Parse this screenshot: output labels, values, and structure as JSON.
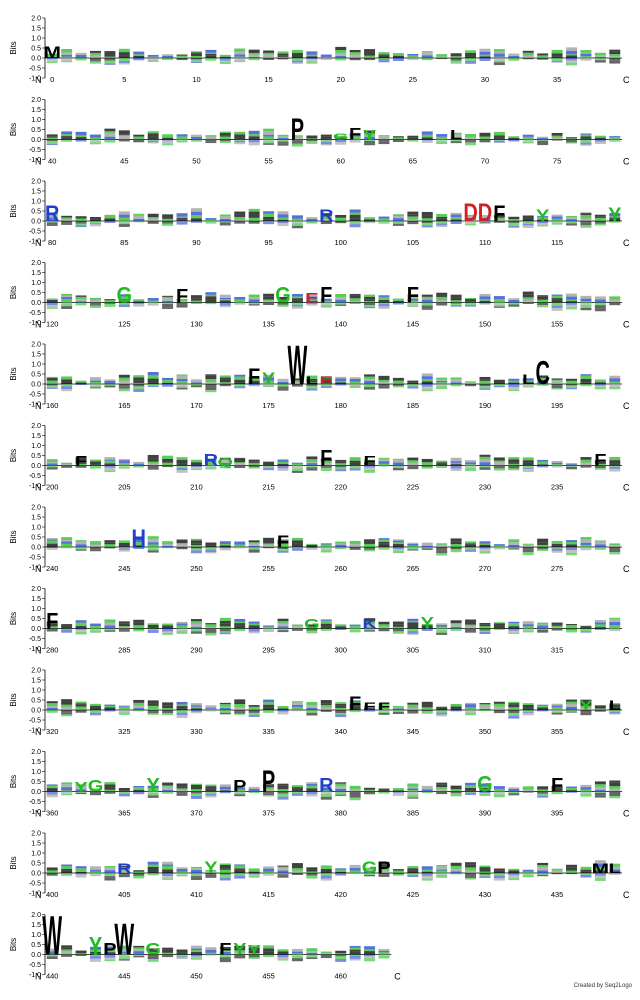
{
  "chart_data": {
    "type": "sequence-logo",
    "ylabel": "Bits",
    "y_ticks": [
      "2.0",
      "1.5",
      "1.0",
      "0.5",
      "0.0",
      "-0.5",
      "-1.0"
    ],
    "ylim": [
      -1.0,
      2.0
    ],
    "n_label": "N",
    "c_label": "C",
    "colors": {
      "hydrophobic": "#000000",
      "polar": "#22bb22",
      "basic": "#1f3fcc",
      "acidic": "#d42020",
      "other": "#cc22cc",
      "background_stack": "#9a9a9a"
    },
    "rows": [
      {
        "start": 0,
        "end": 39,
        "ticks": [
          0,
          5,
          10,
          15,
          20,
          25,
          30,
          35
        ],
        "letters": [
          {
            "pos": 0,
            "char": "M",
            "bits": 0.6
          }
        ]
      },
      {
        "start": 40,
        "end": 79,
        "ticks": [
          40,
          45,
          50,
          55,
          60,
          65,
          70,
          75
        ],
        "letters": [
          {
            "pos": 57,
            "char": "P",
            "bits": 1.1
          },
          {
            "pos": 60,
            "char": "G",
            "bits": 0.3
          },
          {
            "pos": 61,
            "char": "F",
            "bits": 0.6
          },
          {
            "pos": 62,
            "char": "Y",
            "bits": 0.5
          },
          {
            "pos": 68,
            "char": "L",
            "bits": 0.5
          }
        ]
      },
      {
        "start": 80,
        "end": 119,
        "ticks": [
          80,
          85,
          90,
          95,
          100,
          105,
          110,
          115
        ],
        "letters": [
          {
            "pos": 80,
            "char": "R",
            "bits": 0.8
          },
          {
            "pos": 99,
            "char": "R",
            "bits": 0.6
          },
          {
            "pos": 109,
            "char": "D",
            "bits": 0.9
          },
          {
            "pos": 110,
            "char": "D",
            "bits": 0.9
          },
          {
            "pos": 111,
            "char": "F",
            "bits": 0.8
          },
          {
            "pos": 114,
            "char": "Y",
            "bits": 0.6
          },
          {
            "pos": 119,
            "char": "Y",
            "bits": 0.7
          }
        ]
      },
      {
        "start": 120,
        "end": 159,
        "ticks": [
          120,
          125,
          130,
          135,
          140,
          145,
          150,
          155
        ],
        "letters": [
          {
            "pos": 125,
            "char": "G",
            "bits": 0.8
          },
          {
            "pos": 129,
            "char": "F",
            "bits": 0.7
          },
          {
            "pos": 136,
            "char": "G",
            "bits": 0.8
          },
          {
            "pos": 138,
            "char": "E",
            "bits": 0.5
          },
          {
            "pos": 139,
            "char": "F",
            "bits": 0.8
          },
          {
            "pos": 145,
            "char": "F",
            "bits": 0.8
          }
        ]
      },
      {
        "start": 160,
        "end": 199,
        "ticks": [
          160,
          165,
          170,
          175,
          180,
          185,
          190,
          195
        ],
        "letters": [
          {
            "pos": 174,
            "char": "F",
            "bits": 0.8
          },
          {
            "pos": 175,
            "char": "Y",
            "bits": 0.6
          },
          {
            "pos": 177,
            "char": "W",
            "bits": 2.0
          },
          {
            "pos": 178,
            "char": "L",
            "bits": 0.4
          },
          {
            "pos": 179,
            "char": "E",
            "bits": 0.4
          },
          {
            "pos": 193,
            "char": "L",
            "bits": 0.5
          },
          {
            "pos": 194,
            "char": "C",
            "bits": 1.2
          }
        ]
      },
      {
        "start": 200,
        "end": 239,
        "ticks": [
          200,
          205,
          210,
          215,
          220,
          225,
          230,
          235
        ],
        "letters": [
          {
            "pos": 202,
            "char": "F",
            "bits": 0.5
          },
          {
            "pos": 211,
            "char": "R",
            "bits": 0.6
          },
          {
            "pos": 212,
            "char": "Q",
            "bits": 0.4
          },
          {
            "pos": 219,
            "char": "F",
            "bits": 0.8
          },
          {
            "pos": 222,
            "char": "F",
            "bits": 0.5
          },
          {
            "pos": 238,
            "char": "F",
            "bits": 0.6
          }
        ]
      },
      {
        "start": 240,
        "end": 279,
        "ticks": [
          240,
          245,
          250,
          255,
          260,
          265,
          270,
          275
        ],
        "letters": [
          {
            "pos": 246,
            "char": "H",
            "bits": 0.9
          },
          {
            "pos": 256,
            "char": "F",
            "bits": 0.6
          }
        ]
      },
      {
        "start": 280,
        "end": 319,
        "ticks": [
          280,
          285,
          290,
          295,
          300,
          305,
          310,
          315
        ],
        "letters": [
          {
            "pos": 280,
            "char": "F",
            "bits": 0.8
          },
          {
            "pos": 298,
            "char": "G",
            "bits": 0.5
          },
          {
            "pos": 302,
            "char": "K",
            "bits": 0.5
          },
          {
            "pos": 306,
            "char": "Y",
            "bits": 0.6
          }
        ]
      },
      {
        "start": 320,
        "end": 359,
        "ticks": [
          320,
          325,
          330,
          335,
          340,
          345,
          350,
          355
        ],
        "letters": [
          {
            "pos": 341,
            "char": "F",
            "bits": 0.7
          },
          {
            "pos": 342,
            "char": "F",
            "bits": 0.4
          },
          {
            "pos": 343,
            "char": "F",
            "bits": 0.4
          },
          {
            "pos": 357,
            "char": "Y",
            "bits": 0.5
          },
          {
            "pos": 359,
            "char": "L",
            "bits": 0.5
          }
        ]
      },
      {
        "start": 360,
        "end": 399,
        "ticks": [
          360,
          365,
          370,
          375,
          380,
          385,
          390,
          395
        ],
        "letters": [
          {
            "pos": 362,
            "char": "Y",
            "bits": 0.5
          },
          {
            "pos": 363,
            "char": "G",
            "bits": 0.6
          },
          {
            "pos": 367,
            "char": "Y",
            "bits": 0.7
          },
          {
            "pos": 373,
            "char": "P",
            "bits": 0.6
          },
          {
            "pos": 375,
            "char": "P",
            "bits": 1.1
          },
          {
            "pos": 379,
            "char": "R",
            "bits": 0.7
          },
          {
            "pos": 390,
            "char": "G",
            "bits": 0.8
          },
          {
            "pos": 395,
            "char": "F",
            "bits": 0.7
          }
        ]
      },
      {
        "start": 400,
        "end": 439,
        "ticks": [
          400,
          405,
          410,
          415,
          420,
          425,
          430,
          435
        ],
        "letters": [
          {
            "pos": 405,
            "char": "R",
            "bits": 0.5
          },
          {
            "pos": 411,
            "char": "Y",
            "bits": 0.6
          },
          {
            "pos": 422,
            "char": "G",
            "bits": 0.6
          },
          {
            "pos": 423,
            "char": "P",
            "bits": 0.6
          },
          {
            "pos": 438,
            "char": "M",
            "bits": 0.5
          },
          {
            "pos": 439,
            "char": "L",
            "bits": 0.5
          }
        ]
      },
      {
        "start": 440,
        "end": 463,
        "ticks": [
          440,
          445,
          450,
          455,
          460
        ],
        "letters": [
          {
            "pos": 440,
            "char": "W",
            "bits": 2.0
          },
          {
            "pos": 443,
            "char": "Y",
            "bits": 0.9
          },
          {
            "pos": 444,
            "char": "P",
            "bits": 0.6
          },
          {
            "pos": 445,
            "char": "W",
            "bits": 1.6
          },
          {
            "pos": 447,
            "char": "G",
            "bits": 0.6
          },
          {
            "pos": 452,
            "char": "F",
            "bits": 0.6
          },
          {
            "pos": 453,
            "char": "Y",
            "bits": 0.6
          },
          {
            "pos": 454,
            "char": "Y",
            "bits": 0.5
          }
        ]
      }
    ]
  },
  "credit": "Created by Seq2Logo"
}
